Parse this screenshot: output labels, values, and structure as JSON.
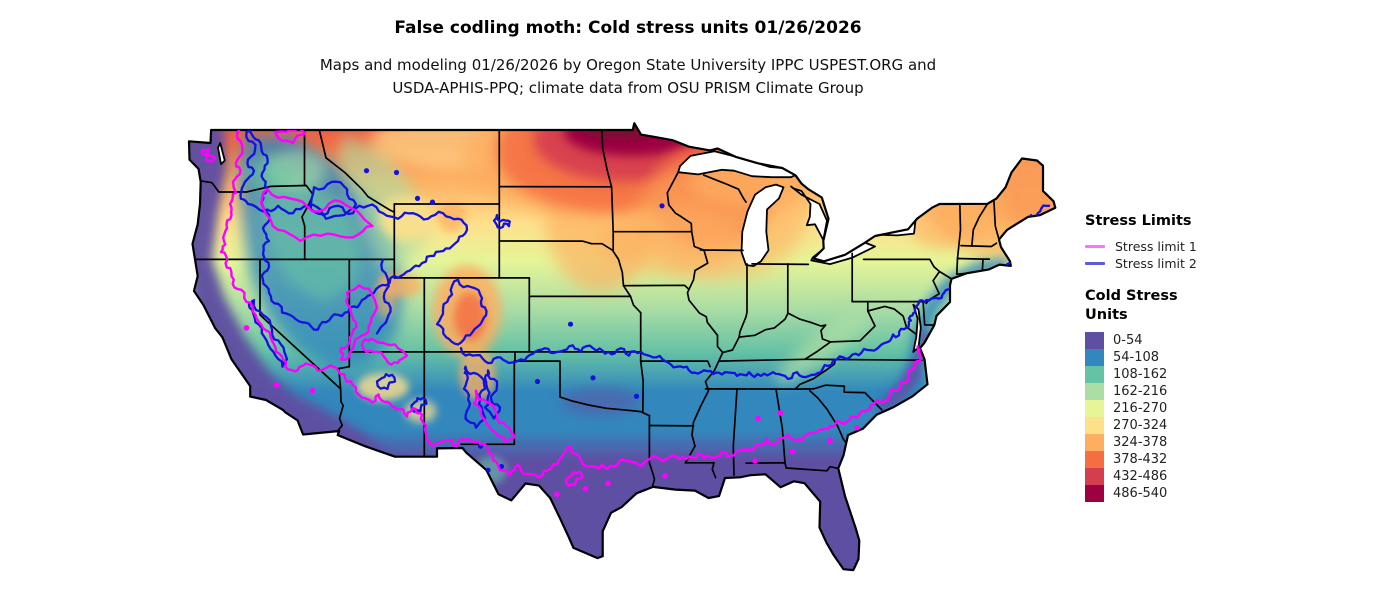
{
  "header": {
    "title": "False codling moth: Cold stress units 01/26/2026",
    "subtitle_line1": "Maps and modeling 01/26/2026 by Oregon State University IPPC USPEST.ORG and",
    "subtitle_line2": "USDA-APHIS-PPQ; climate data from OSU PRISM Climate Group"
  },
  "legend": {
    "stress_limits": {
      "title": "Stress Limits",
      "items": [
        {
          "label": "Stress limit 1",
          "color": "#ff70ff"
        },
        {
          "label": "Stress limit 2",
          "color": "#5b5bdc"
        }
      ]
    },
    "cold_stress": {
      "title_line1": "Cold Stress",
      "title_line2": "Units",
      "classes": [
        {
          "range": "0-54",
          "color": "#5e4fa2"
        },
        {
          "range": "54-108",
          "color": "#3288bd"
        },
        {
          "range": "108-162",
          "color": "#66c2a5"
        },
        {
          "range": "162-216",
          "color": "#abdda4"
        },
        {
          "range": "216-270",
          "color": "#e6f598"
        },
        {
          "range": "270-324",
          "color": "#fee08b"
        },
        {
          "range": "324-378",
          "color": "#fdae61"
        },
        {
          "range": "378-432",
          "color": "#f46d43"
        },
        {
          "range": "432-486",
          "color": "#d53e4f"
        },
        {
          "range": "486-540",
          "color": "#9e0142"
        }
      ]
    }
  },
  "map": {
    "stress_limit1_color": "#ff00ff",
    "stress_limit2_color": "#1212e0",
    "outline_color": "#000000",
    "water_color": "#ffffff",
    "top_extreme_color": "#7c0b35",
    "north_base_color": "#e4574b"
  }
}
